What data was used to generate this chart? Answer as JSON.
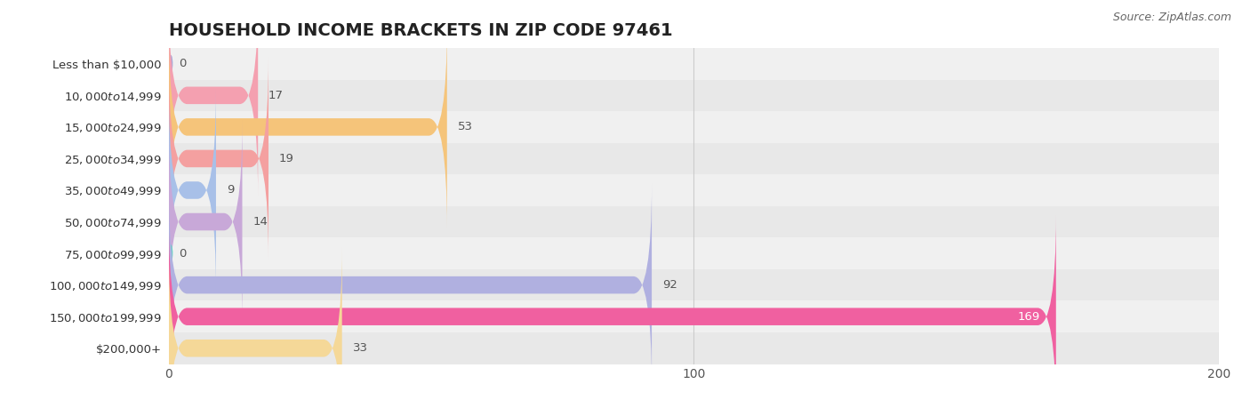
{
  "title": "HOUSEHOLD INCOME BRACKETS IN ZIP CODE 97461",
  "source": "Source: ZipAtlas.com",
  "categories": [
    "Less than $10,000",
    "$10,000 to $14,999",
    "$15,000 to $24,999",
    "$25,000 to $34,999",
    "$35,000 to $49,999",
    "$50,000 to $74,999",
    "$75,000 to $99,999",
    "$100,000 to $149,999",
    "$150,000 to $199,999",
    "$200,000+"
  ],
  "values": [
    0,
    17,
    53,
    19,
    9,
    14,
    0,
    92,
    169,
    33
  ],
  "bar_colors": [
    "#a8a8d8",
    "#f4a0b0",
    "#f5c47a",
    "#f4a0a0",
    "#a8c0e8",
    "#c8a8d8",
    "#6ecec8",
    "#b0b0e0",
    "#f060a0",
    "#f5d898"
  ],
  "xlim": [
    0,
    200
  ],
  "xticks": [
    0,
    100,
    200
  ],
  "background_color": "#ffffff",
  "row_bg_even": "#f0f0f0",
  "row_bg_odd": "#e8e8e8",
  "bar_height": 0.55,
  "value_label_color_inside": "#ffffff",
  "value_label_color_outside": "#555555",
  "title_fontsize": 14,
  "label_fontsize": 9.5,
  "tick_fontsize": 10,
  "source_fontsize": 9,
  "inside_threshold": 150
}
